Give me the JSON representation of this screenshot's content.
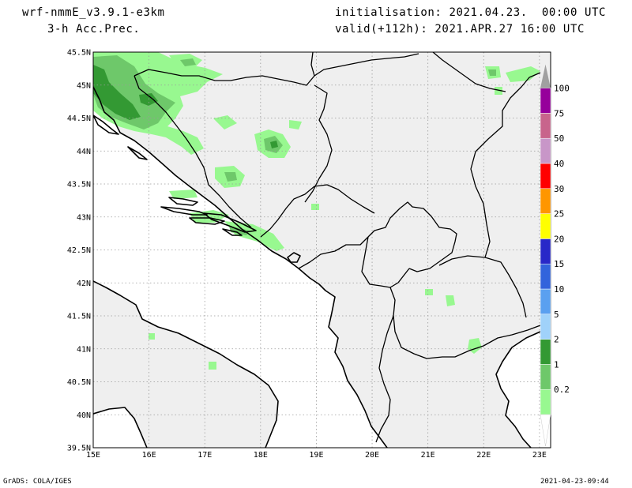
{
  "header": {
    "model": "wrf-nmmE_v3.9.1-e3km",
    "field": "3-h Acc.Prec.",
    "init": "initialisation: 2021.04.23.  00:00 UTC",
    "valid": "valid(+112h): 2021.APR.27 16:00 UTC"
  },
  "footer": {
    "credit": "GrADS: COLA/IGES",
    "timestamp": "2021-04-23-09:44"
  },
  "map": {
    "lon_range": [
      15,
      23.2
    ],
    "lat_range": [
      39.5,
      45.5
    ],
    "lat_ticks": [
      {
        "value": 45.5,
        "label": "45.5N"
      },
      {
        "value": 45,
        "label": "45N"
      },
      {
        "value": 44.5,
        "label": "44.5N"
      },
      {
        "value": 44,
        "label": "44N"
      },
      {
        "value": 43.5,
        "label": "43.5N"
      },
      {
        "value": 43,
        "label": "43N"
      },
      {
        "value": 42.5,
        "label": "42.5N"
      },
      {
        "value": 42,
        "label": "42N"
      },
      {
        "value": 41.5,
        "label": "41.5N"
      },
      {
        "value": 41,
        "label": "41N"
      },
      {
        "value": 40.5,
        "label": "40.5N"
      },
      {
        "value": 40,
        "label": "40N"
      },
      {
        "value": 39.5,
        "label": "39.5N"
      }
    ],
    "lon_ticks": [
      {
        "value": 15,
        "label": "15E"
      },
      {
        "value": 16,
        "label": "16E"
      },
      {
        "value": 17,
        "label": "17E"
      },
      {
        "value": 18,
        "label": "18E"
      },
      {
        "value": 19,
        "label": "19E"
      },
      {
        "value": 20,
        "label": "20E"
      },
      {
        "value": 21,
        "label": "21E"
      },
      {
        "value": 22,
        "label": "22E"
      },
      {
        "value": 23,
        "label": "23E"
      }
    ],
    "grid": true,
    "colors": {
      "land": "#efefef",
      "coast": "#000000",
      "grid": "#9a9a9a"
    }
  },
  "colorbar": {
    "levels": [
      {
        "label": "0.2",
        "color": "#98f890"
      },
      {
        "label": "1",
        "color": "#6ec86a"
      },
      {
        "label": "2",
        "color": "#339933"
      },
      {
        "label": "5",
        "color": "#a0d2fa"
      },
      {
        "label": "10",
        "color": "#5aa0f0"
      },
      {
        "label": "15",
        "color": "#3264dc"
      },
      {
        "label": "20",
        "color": "#2828c8"
      },
      {
        "label": "25",
        "color": "#ffff00"
      },
      {
        "label": "30",
        "color": "#ff9600"
      },
      {
        "label": "40",
        "color": "#ff0000"
      },
      {
        "label": "50",
        "color": "#c896c8"
      },
      {
        "label": "75",
        "color": "#c8648c"
      },
      {
        "label": "100",
        "color": "#96009b"
      }
    ],
    "overflow_color": "#a0a0a0"
  }
}
